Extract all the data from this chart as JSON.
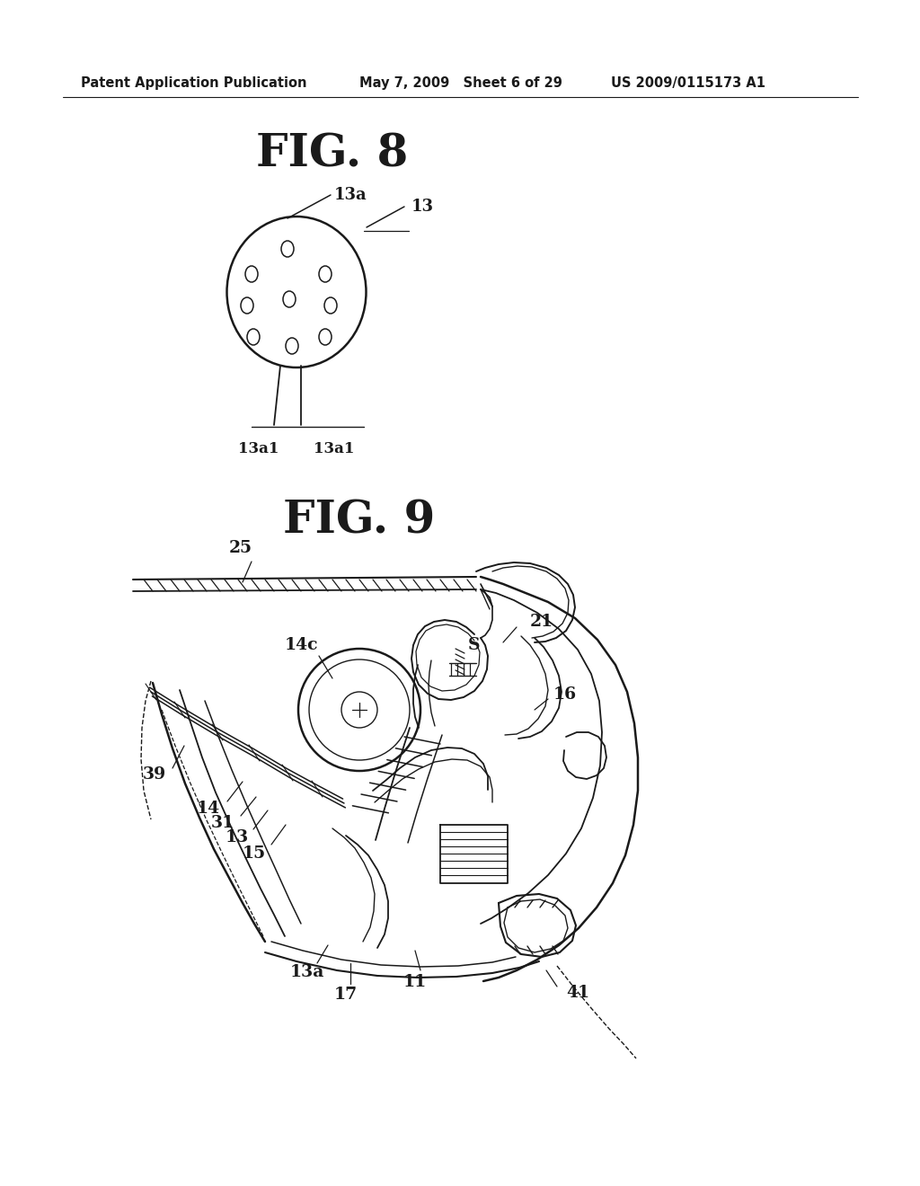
{
  "background_color": "#ffffff",
  "line_color": "#1a1a1a",
  "header_text": "Patent Application Publication",
  "header_date": "May 7, 2009   Sheet 6 of 29",
  "header_patent": "US 2009/0115173 A1",
  "fig8_title": "FIG. 8",
  "fig9_title": "FIG. 9"
}
